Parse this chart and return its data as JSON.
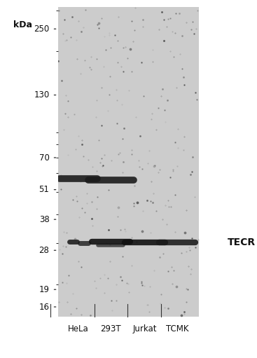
{
  "fig_width": 3.67,
  "fig_height": 5.11,
  "dpi": 100,
  "bg_color": "#ffffff",
  "gel_color_light": "#d0d0d0",
  "gel_color_dark": "#b8b8b8",
  "band_color": "#1a1a1a",
  "text_color": "#111111",
  "kda_labels": [
    "250",
    "130",
    "70",
    "51",
    "38",
    "28",
    "19",
    "16"
  ],
  "kda_values": [
    250,
    130,
    70,
    51,
    38,
    28,
    19,
    16
  ],
  "sample_labels": [
    "HeLa",
    "293T",
    "Jurkat",
    "TCMK"
  ],
  "tecr_label": "← TECR",
  "kda_unit": "kDa",
  "noise_seed": 7,
  "font_size_kda": 8.5,
  "font_size_sample": 8.5,
  "font_size_tecr": 10,
  "font_size_kda_unit": 9
}
